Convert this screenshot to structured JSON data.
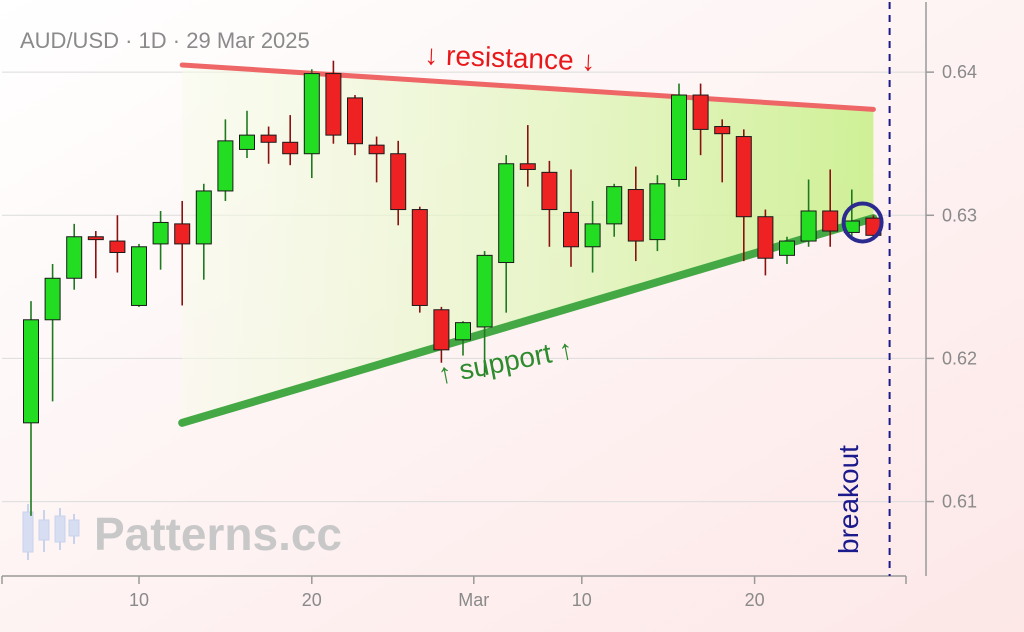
{
  "chart_data": {
    "type": "candlestick",
    "title": "AUD/USD · 1D · 29 Mar 2025",
    "symbol": "AUD/USD",
    "timeframe": "1D",
    "x_tick_labels": [
      "10",
      "20",
      "Mar",
      "10",
      "20"
    ],
    "y_tick_labels": [
      "0.64",
      "0.63",
      "0.62",
      "0.61"
    ],
    "ylim": [
      0.6048,
      0.6449
    ],
    "grid": true,
    "colors": {
      "up": "#22dd22",
      "down": "#ee2222",
      "resistance": "#ee6666",
      "support": "#44a844",
      "breakout": "#1a1a8c",
      "fill": "#d8f2a8",
      "background": "#fdeeee"
    },
    "candles": [
      {
        "o": 0.6155,
        "h": 0.624,
        "l": 0.609,
        "c": 0.6227
      },
      {
        "o": 0.6227,
        "h": 0.6266,
        "l": 0.617,
        "c": 0.6256
      },
      {
        "o": 0.6256,
        "h": 0.6294,
        "l": 0.6248,
        "c": 0.6285
      },
      {
        "o": 0.6285,
        "h": 0.6289,
        "l": 0.6256,
        "c": 0.6283
      },
      {
        "o": 0.6282,
        "h": 0.63,
        "l": 0.626,
        "c": 0.6274
      },
      {
        "o": 0.6237,
        "h": 0.628,
        "l": 0.6236,
        "c": 0.6278
      },
      {
        "o": 0.628,
        "h": 0.6303,
        "l": 0.6262,
        "c": 0.6295
      },
      {
        "o": 0.6294,
        "h": 0.631,
        "l": 0.6237,
        "c": 0.628
      },
      {
        "o": 0.628,
        "h": 0.6322,
        "l": 0.6255,
        "c": 0.6317
      },
      {
        "o": 0.6317,
        "h": 0.6367,
        "l": 0.631,
        "c": 0.6352
      },
      {
        "o": 0.6346,
        "h": 0.6373,
        "l": 0.634,
        "c": 0.6356
      },
      {
        "o": 0.6356,
        "h": 0.6362,
        "l": 0.6336,
        "c": 0.6351
      },
      {
        "o": 0.6351,
        "h": 0.637,
        "l": 0.6335,
        "c": 0.6343
      },
      {
        "o": 0.6343,
        "h": 0.6402,
        "l": 0.6326,
        "c": 0.6399
      },
      {
        "o": 0.6399,
        "h": 0.6408,
        "l": 0.635,
        "c": 0.6356
      },
      {
        "o": 0.6382,
        "h": 0.6384,
        "l": 0.6342,
        "c": 0.635
      },
      {
        "o": 0.6349,
        "h": 0.6355,
        "l": 0.6323,
        "c": 0.6343
      },
      {
        "o": 0.6343,
        "h": 0.6352,
        "l": 0.6293,
        "c": 0.6304
      },
      {
        "o": 0.6304,
        "h": 0.6306,
        "l": 0.6232,
        "c": 0.6237
      },
      {
        "o": 0.6234,
        "h": 0.6236,
        "l": 0.6197,
        "c": 0.6206
      },
      {
        "o": 0.6213,
        "h": 0.6226,
        "l": 0.6202,
        "c": 0.6225
      },
      {
        "o": 0.6222,
        "h": 0.6275,
        "l": 0.6187,
        "c": 0.6272
      },
      {
        "o": 0.6267,
        "h": 0.6342,
        "l": 0.6232,
        "c": 0.6336
      },
      {
        "o": 0.6336,
        "h": 0.6363,
        "l": 0.632,
        "c": 0.6332
      },
      {
        "o": 0.633,
        "h": 0.6338,
        "l": 0.6278,
        "c": 0.6304
      },
      {
        "o": 0.6302,
        "h": 0.6332,
        "l": 0.6264,
        "c": 0.6278
      },
      {
        "o": 0.6278,
        "h": 0.631,
        "l": 0.626,
        "c": 0.6294
      },
      {
        "o": 0.6294,
        "h": 0.6322,
        "l": 0.6285,
        "c": 0.632
      },
      {
        "o": 0.6318,
        "h": 0.6334,
        "l": 0.6268,
        "c": 0.6282
      },
      {
        "o": 0.6283,
        "h": 0.6328,
        "l": 0.6275,
        "c": 0.6322
      },
      {
        "o": 0.6325,
        "h": 0.6392,
        "l": 0.632,
        "c": 0.6384
      },
      {
        "o": 0.6384,
        "h": 0.6392,
        "l": 0.6342,
        "c": 0.636
      },
      {
        "o": 0.6362,
        "h": 0.6367,
        "l": 0.6323,
        "c": 0.6357
      },
      {
        "o": 0.6355,
        "h": 0.636,
        "l": 0.6268,
        "c": 0.6299
      },
      {
        "o": 0.6299,
        "h": 0.6304,
        "l": 0.6258,
        "c": 0.627
      },
      {
        "o": 0.6272,
        "h": 0.6285,
        "l": 0.6266,
        "c": 0.6282
      },
      {
        "o": 0.6282,
        "h": 0.6325,
        "l": 0.6278,
        "c": 0.6303
      },
      {
        "o": 0.6303,
        "h": 0.6332,
        "l": 0.6278,
        "c": 0.6289
      },
      {
        "o": 0.6288,
        "h": 0.6318,
        "l": 0.6284,
        "c": 0.6296
      },
      {
        "o": 0.6298,
        "h": 0.63,
        "l": 0.6284,
        "c": 0.6286
      }
    ],
    "annotations": {
      "resistance_label": "↓ resistance ↓",
      "support_label": "↑ support ↑",
      "breakout_label": "breakout",
      "resistance_line": {
        "start_index": 7,
        "start_price": 0.6405,
        "end_index": 39,
        "end_price": 0.6374
      },
      "support_line": {
        "start_index": 7,
        "start_price": 0.6155,
        "end_index": 39,
        "end_price": 0.6298
      },
      "breakout_index": 39.75,
      "marker_index": 38.5,
      "marker_price": 0.6295
    }
  },
  "watermark": {
    "text": "Patterns.cc",
    "icon": "candlestick-logo-icon"
  }
}
